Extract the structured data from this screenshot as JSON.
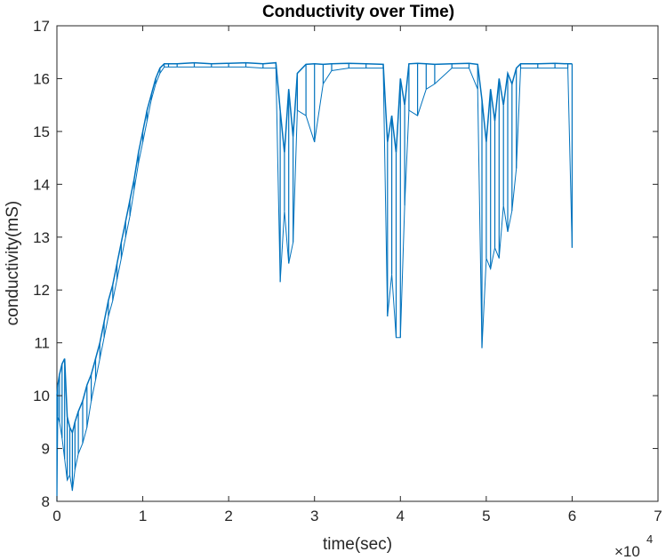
{
  "chart_data": {
    "type": "line",
    "title": "Conductivity over Time)",
    "xlabel": "time(sec)",
    "ylabel": "conductivity(mS)",
    "xlim": [
      0,
      70000
    ],
    "ylim": [
      8,
      17
    ],
    "x_ticks": [
      0,
      10000,
      20000,
      30000,
      40000,
      50000,
      60000,
      70000
    ],
    "x_tick_labels": [
      "0",
      "1",
      "2",
      "3",
      "4",
      "5",
      "6",
      "7"
    ],
    "x_exponent_label": "×10",
    "x_exponent_power": "4",
    "y_ticks": [
      8,
      9,
      10,
      11,
      12,
      13,
      14,
      15,
      16,
      17
    ],
    "y_tick_labels": [
      "8",
      "9",
      "10",
      "11",
      "12",
      "13",
      "14",
      "15",
      "16",
      "17"
    ],
    "grid": false,
    "series": [
      {
        "color": "#0072BD",
        "x": [
          0,
          100,
          300,
          600,
          900,
          1200,
          1500,
          1800,
          2100,
          2500,
          3000,
          3500,
          4000,
          4500,
          5000,
          5500,
          6000,
          6500,
          7000,
          7500,
          8000,
          8500,
          9000,
          9500,
          10000,
          10500,
          11000,
          11500,
          12000,
          12500,
          13000,
          14000,
          16000,
          18000,
          20000,
          22000,
          24000,
          25500,
          26000,
          26500,
          27000,
          27500,
          28000,
          29000,
          30000,
          31000,
          32000,
          34000,
          36000,
          38000,
          38500,
          39000,
          39500,
          40000,
          40500,
          41000,
          42000,
          43000,
          44000,
          46000,
          48000,
          49000,
          49500,
          50000,
          50500,
          51000,
          51500,
          52000,
          52500,
          53000,
          53500,
          54000,
          56000,
          58000,
          59500,
          60000
        ],
        "y": [
          10.0,
          10.2,
          10.4,
          10.6,
          10.7,
          9.6,
          9.4,
          9.3,
          9.5,
          9.7,
          9.9,
          10.2,
          10.4,
          10.7,
          11.0,
          11.4,
          11.8,
          12.1,
          12.5,
          12.9,
          13.3,
          13.7,
          14.1,
          14.6,
          15.0,
          15.4,
          15.7,
          16.0,
          16.2,
          16.28,
          16.28,
          16.28,
          16.3,
          16.28,
          16.29,
          16.3,
          16.28,
          16.3,
          15.4,
          14.6,
          15.8,
          14.9,
          16.1,
          16.27,
          16.28,
          16.27,
          16.28,
          16.29,
          16.28,
          16.27,
          14.8,
          15.3,
          14.6,
          16.0,
          15.5,
          16.28,
          16.29,
          16.28,
          16.27,
          16.28,
          16.29,
          16.27,
          15.6,
          14.8,
          15.8,
          15.2,
          16.0,
          15.5,
          16.1,
          15.9,
          16.2,
          16.28,
          16.28,
          16.29,
          16.28,
          16.28
        ],
        "min_envelope": [
          8.0,
          9.6,
          9.5,
          9.2,
          8.8,
          8.4,
          8.5,
          8.2,
          8.6,
          8.9,
          9.1,
          9.4,
          9.9,
          10.3,
          10.7,
          11.1,
          11.5,
          11.8,
          12.2,
          12.6,
          13.0,
          13.4,
          13.9,
          14.4,
          14.8,
          15.2,
          15.6,
          15.9,
          16.1,
          16.22,
          16.22,
          16.22,
          16.22,
          16.22,
          16.22,
          16.22,
          16.2,
          16.2,
          12.15,
          13.5,
          12.5,
          12.9,
          15.4,
          15.3,
          14.8,
          15.9,
          16.15,
          16.2,
          16.2,
          16.2,
          11.5,
          12.3,
          11.1,
          11.1,
          13.6,
          15.4,
          15.3,
          15.8,
          15.9,
          16.2,
          16.2,
          15.8,
          10.9,
          12.6,
          12.4,
          12.8,
          12.6,
          13.6,
          13.1,
          13.5,
          14.3,
          16.2,
          16.2,
          16.2,
          16.2,
          12.8
        ]
      }
    ]
  }
}
